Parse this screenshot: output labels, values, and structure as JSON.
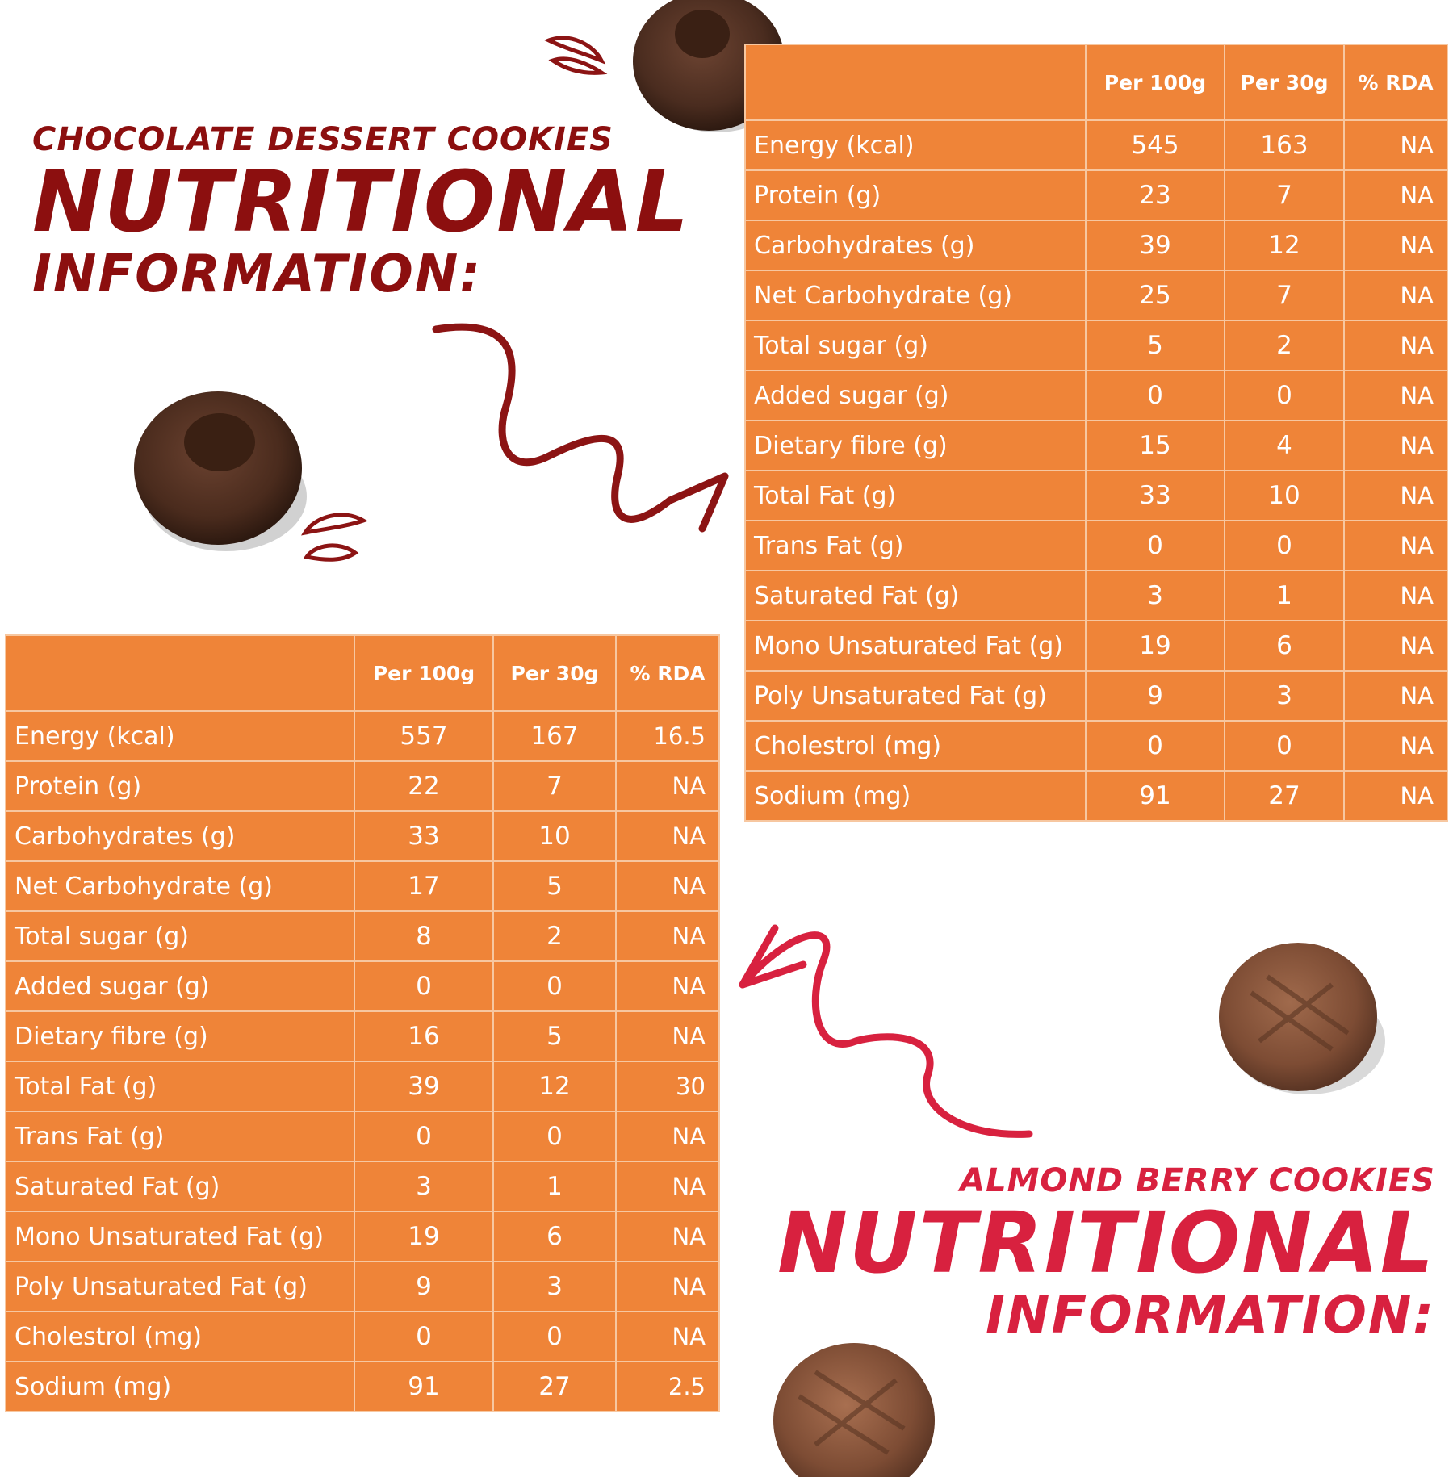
{
  "colors": {
    "table_bg": "#ef8438",
    "table_grid": "#f7c7a0",
    "chocolate_heading": "#8c0f0f",
    "almond_heading": "#d8213f",
    "arrow_dark": "#8c1414",
    "arrow_light": "#d8213f"
  },
  "chocolate": {
    "subtitle": "CHOCOLATE DESSERT COOKIES",
    "title": "NUTRITIONAL",
    "title2": "INFORMATION:",
    "table": {
      "headers": [
        "",
        "Per 100g",
        "Per 30g",
        "% RDA"
      ],
      "rows": [
        {
          "label": "Energy (kcal)",
          "per100": "545",
          "per30": "163",
          "rda": "NA"
        },
        {
          "label": "Protein (g)",
          "per100": "23",
          "per30": "7",
          "rda": "NA"
        },
        {
          "label": "Carbohydrates (g)",
          "per100": "39",
          "per30": "12",
          "rda": "NA"
        },
        {
          "label": "Net Carbohydrate (g)",
          "per100": "25",
          "per30": "7",
          "rda": "NA"
        },
        {
          "label": "Total sugar (g)",
          "per100": "5",
          "per30": "2",
          "rda": "NA"
        },
        {
          "label": "Added sugar (g)",
          "per100": "0",
          "per30": "0",
          "rda": "NA"
        },
        {
          "label": "Dietary fibre (g)",
          "per100": "15",
          "per30": "4",
          "rda": "NA"
        },
        {
          "label": "Total Fat (g)",
          "per100": "33",
          "per30": "10",
          "rda": "NA"
        },
        {
          "label": "Trans Fat (g)",
          "per100": "0",
          "per30": "0",
          "rda": "NA"
        },
        {
          "label": "Saturated Fat (g)",
          "per100": "3",
          "per30": "1",
          "rda": "NA"
        },
        {
          "label": "Mono Unsaturated Fat (g)",
          "per100": "19",
          "per30": "6",
          "rda": "NA"
        },
        {
          "label": "Poly Unsaturated Fat (g)",
          "per100": "9",
          "per30": "3",
          "rda": "NA"
        },
        {
          "label": "Cholestrol (mg)",
          "per100": "0",
          "per30": "0",
          "rda": "NA"
        },
        {
          "label": "Sodium (mg)",
          "per100": "91",
          "per30": "27",
          "rda": "NA"
        }
      ]
    }
  },
  "almond": {
    "subtitle": "ALMOND BERRY COOKIES",
    "title": "NUTRITIONAL",
    "title2": "INFORMATION:",
    "table": {
      "headers": [
        "",
        "Per 100g",
        "Per 30g",
        "% RDA"
      ],
      "rows": [
        {
          "label": "Energy (kcal)",
          "per100": "557",
          "per30": "167",
          "rda": "16.5"
        },
        {
          "label": "Protein (g)",
          "per100": "22",
          "per30": "7",
          "rda": "NA"
        },
        {
          "label": "Carbohydrates (g)",
          "per100": "33",
          "per30": "10",
          "rda": "NA"
        },
        {
          "label": "Net Carbohydrate (g)",
          "per100": "17",
          "per30": "5",
          "rda": "NA"
        },
        {
          "label": "Total sugar (g)",
          "per100": "8",
          "per30": "2",
          "rda": "NA"
        },
        {
          "label": "Added sugar (g)",
          "per100": "0",
          "per30": "0",
          "rda": "NA"
        },
        {
          "label": "Dietary fibre (g)",
          "per100": "16",
          "per30": "5",
          "rda": "NA"
        },
        {
          "label": "Total Fat (g)",
          "per100": "39",
          "per30": "12",
          "rda": "30"
        },
        {
          "label": "Trans Fat (g)",
          "per100": "0",
          "per30": "0",
          "rda": "NA"
        },
        {
          "label": "Saturated Fat (g)",
          "per100": "3",
          "per30": "1",
          "rda": "NA"
        },
        {
          "label": "Mono Unsaturated Fat (g)",
          "per100": "19",
          "per30": "6",
          "rda": "NA"
        },
        {
          "label": "Poly Unsaturated Fat (g)",
          "per100": "9",
          "per30": "3",
          "rda": "NA"
        },
        {
          "label": "Cholestrol (mg)",
          "per100": "0",
          "per30": "0",
          "rda": "NA"
        },
        {
          "label": "Sodium (mg)",
          "per100": "91",
          "per30": "27",
          "rda": "2.5"
        }
      ]
    }
  }
}
